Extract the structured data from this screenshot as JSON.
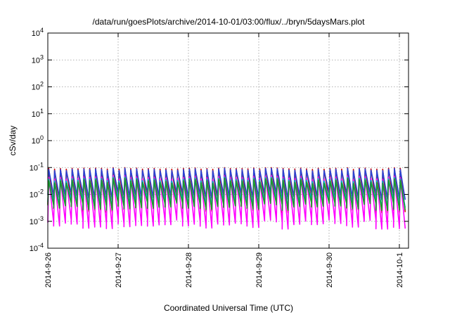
{
  "chart_data": {
    "type": "line",
    "title": "/data/run/goesPlots/archive/2014-10-01/03:00/flux/../bryn/5daysMars.plot",
    "xlabel": "Coordinated Universal Time (UTC)",
    "ylabel": "cSv/day",
    "yscale": "log",
    "ylim": [
      0.0001,
      10000
    ],
    "xlim": [
      "2014-09-26",
      "2014-10-01 04:30"
    ],
    "grid": true,
    "legend": "none",
    "x_ticks": [
      "2014-9-26",
      "2014-9-27",
      "2014-9-28",
      "2014-9-29",
      "2014-9-30",
      "2014-10-1"
    ],
    "y_ticks": [
      {
        "base": "10",
        "exp": "-4",
        "value": 0.0001
      },
      {
        "base": "10",
        "exp": "-3",
        "value": 0.001
      },
      {
        "base": "10",
        "exp": "-2",
        "value": 0.01
      },
      {
        "base": "10",
        "exp": "-1",
        "value": 0.1
      },
      {
        "base": "10",
        "exp": "0",
        "value": 1
      },
      {
        "base": "10",
        "exp": "1",
        "value": 10
      },
      {
        "base": "10",
        "exp": "2",
        "value": 100
      },
      {
        "base": "10",
        "exp": "3",
        "value": 1000
      },
      {
        "base": "10",
        "exp": "4",
        "value": 10000
      }
    ],
    "cycles_per_day": 12,
    "series": [
      {
        "color": "#cc0000",
        "peaks": [
          0.085,
          0.1
        ],
        "troughs": [
          0.002,
          0.006
        ]
      },
      {
        "color": "#2a44d4",
        "peaks": [
          0.075,
          0.095
        ],
        "troughs": [
          0.006,
          0.012
        ]
      },
      {
        "color": "#ff00ff",
        "peaks": [
          0.035,
          0.05
        ],
        "troughs": [
          0.0005,
          0.0012
        ]
      },
      {
        "color": "#00b8c8",
        "peaks": [
          0.03,
          0.045
        ],
        "troughs": [
          0.003,
          0.007
        ]
      },
      {
        "color": "#1a9a2a",
        "peaks": [
          0.025,
          0.04
        ],
        "troughs": [
          0.0025,
          0.005
        ]
      }
    ]
  }
}
